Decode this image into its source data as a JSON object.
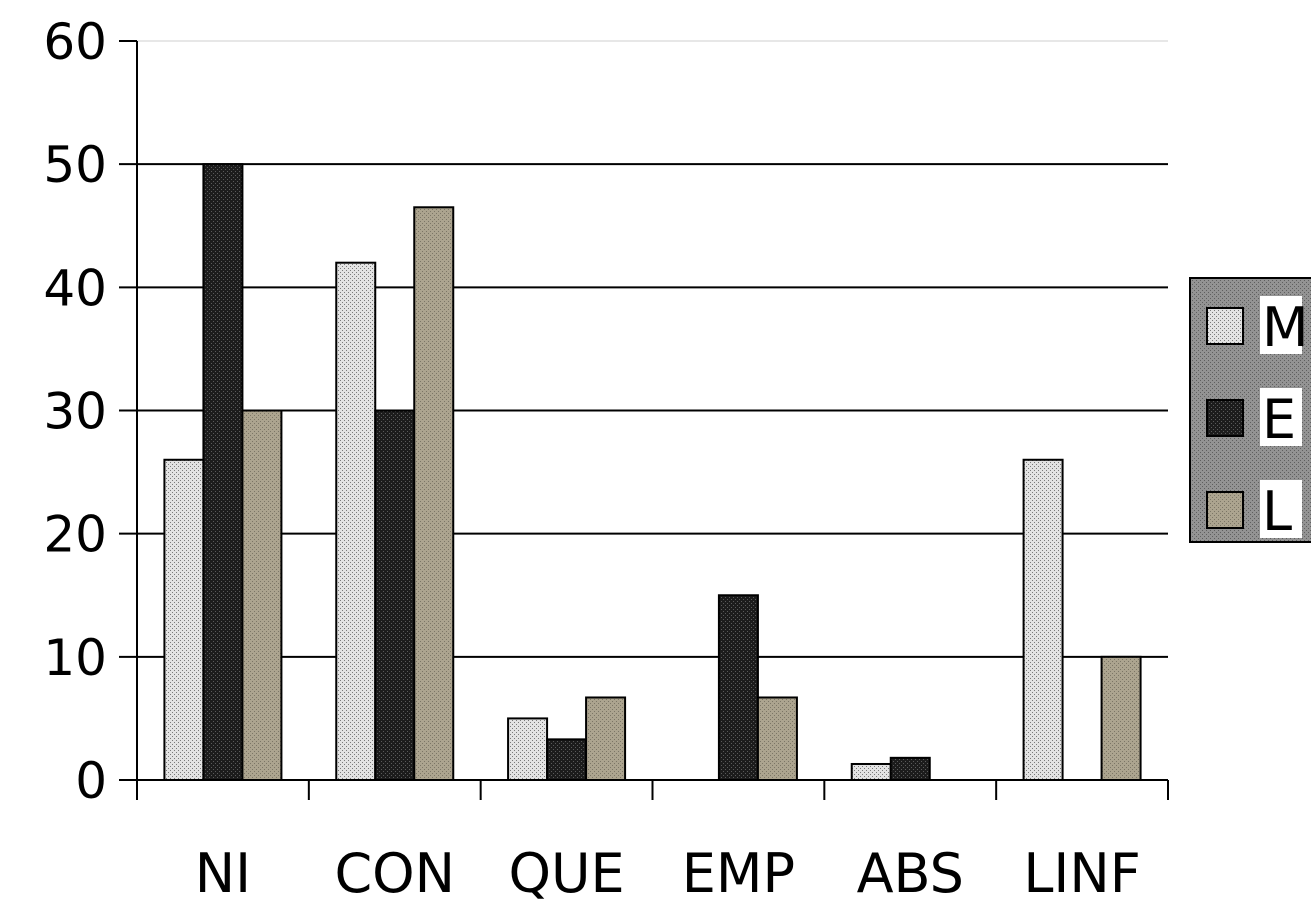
{
  "chart_data": {
    "type": "bar",
    "title": "",
    "xlabel": "",
    "ylabel": "",
    "categories": [
      "NI",
      "CON",
      "QUE",
      "EMP",
      "ABS",
      "LINF"
    ],
    "ylim": [
      0,
      60
    ],
    "yticks": [
      0,
      10,
      20,
      30,
      40,
      50,
      60
    ],
    "grid": true,
    "legend_position": "right",
    "series": [
      {
        "name": "M",
        "values": [
          26,
          42,
          5,
          0,
          1.3,
          26
        ],
        "pattern": "light-dotted"
      },
      {
        "name": "E",
        "values": [
          50,
          30,
          3.3,
          15,
          1.8,
          0
        ],
        "pattern": "dark"
      },
      {
        "name": "L",
        "values": [
          30,
          46.5,
          6.7,
          6.7,
          0,
          10
        ],
        "pattern": "olive"
      }
    ]
  },
  "colors": {
    "light": "#d9d9d9",
    "dark": "#1a1a1a",
    "olive": "#aaa290",
    "legend_bg": "#8c8c8c",
    "axis": "#000000"
  }
}
